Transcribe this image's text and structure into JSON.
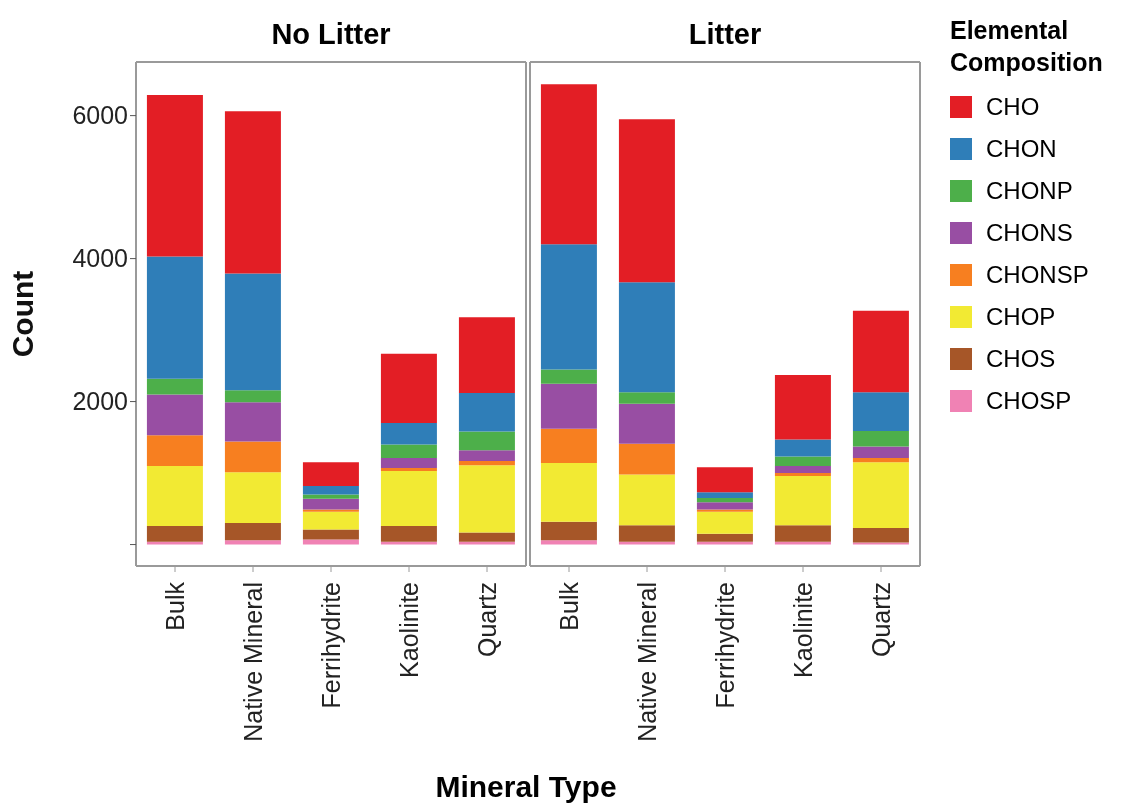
{
  "chart_data": [
    {
      "type": "bar",
      "title": "No Litter",
      "xlabel": "Mineral Type",
      "ylabel": "Count",
      "stacked": true,
      "categories": [
        "Bulk",
        "Native Mineral",
        "Ferrihydrite",
        "Kaolinite",
        "Quartz"
      ],
      "ylim": [
        -300,
        6750
      ],
      "yticks": [
        {
          "value": 0,
          "label": null
        },
        2000,
        4000,
        6000
      ],
      "grid": false,
      "series": [
        {
          "color": "#f082b4",
          "values": [
            40,
            60,
            70,
            40,
            40
          ]
        },
        {
          "color": "#a65628",
          "values": [
            220,
            240,
            140,
            220,
            130
          ]
        },
        {
          "color": "#f2ea33",
          "values": [
            840,
            710,
            250,
            770,
            940
          ]
        },
        {
          "color": "#f77f20",
          "values": [
            430,
            430,
            30,
            40,
            60
          ]
        },
        {
          "color": "#984ea3",
          "values": [
            570,
            550,
            150,
            140,
            150
          ]
        },
        {
          "color": "#4daf4a",
          "values": [
            220,
            170,
            60,
            190,
            260
          ]
        },
        {
          "color": "#2f7eb8",
          "values": [
            1710,
            1630,
            120,
            300,
            540
          ]
        },
        {
          "color": "#e31e25",
          "values": [
            2260,
            2270,
            330,
            970,
            1060
          ]
        }
      ]
    },
    {
      "type": "bar",
      "title": "Litter",
      "legend_title": "Elemental Composition",
      "legend": "right",
      "tick_labels": "x",
      "stacked": true,
      "categories": [
        "Bulk",
        "Native Mineral",
        "Ferrihydrite",
        "Kaolinite",
        "Quartz"
      ],
      "ylim": [
        -300,
        6750
      ],
      "grid": false,
      "series": [
        {
          "name": "CHOSP",
          "color": "#f082b4",
          "values": [
            60,
            40,
            40,
            40,
            30
          ]
        },
        {
          "name": "CHOS",
          "color": "#a65628",
          "values": [
            260,
            230,
            110,
            230,
            200
          ]
        },
        {
          "name": "CHOP",
          "color": "#f2ea33",
          "values": [
            820,
            710,
            310,
            690,
            920
          ]
        },
        {
          "name": "CHONSP",
          "color": "#f77f20",
          "values": [
            480,
            430,
            30,
            40,
            60
          ]
        },
        {
          "name": "CHONS",
          "color": "#984ea3",
          "values": [
            630,
            560,
            100,
            100,
            160
          ]
        },
        {
          "name": "CHONP",
          "color": "#4daf4a",
          "values": [
            200,
            160,
            60,
            130,
            220
          ]
        },
        {
          "name": "CHON",
          "color": "#2f7eb8",
          "values": [
            1750,
            1540,
            80,
            240,
            540
          ]
        },
        {
          "name": "CHO",
          "color": "#e31e25",
          "values": [
            2240,
            2280,
            350,
            900,
            1140
          ]
        }
      ]
    }
  ]
}
